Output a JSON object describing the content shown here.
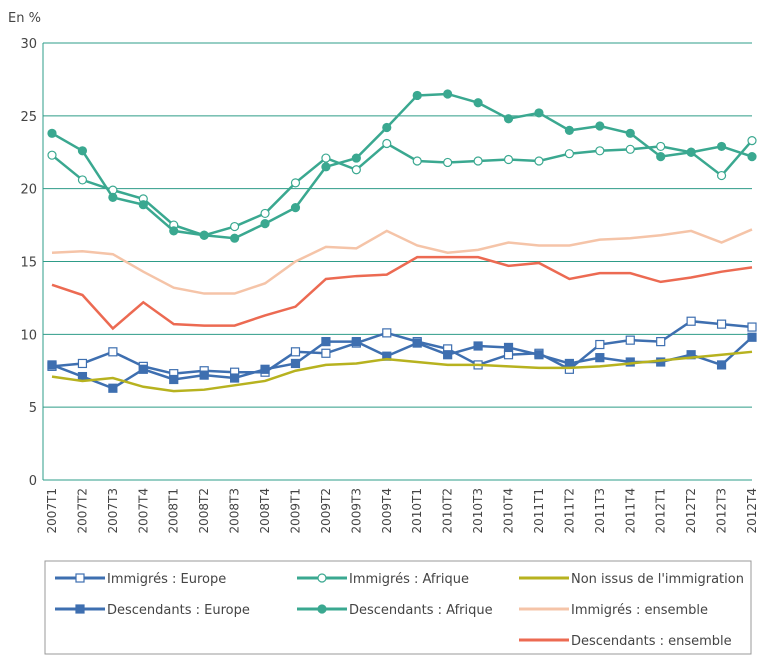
{
  "chart_data": {
    "type": "line",
    "y_label": "En %",
    "categories": [
      "2007T1",
      "2007T2",
      "2007T3",
      "2007T4",
      "2008T1",
      "2008T2",
      "2008T3",
      "2008T4",
      "2009T1",
      "2009T2",
      "2009T3",
      "2009T4",
      "2010T1",
      "2010T2",
      "2010T3",
      "2010T4",
      "2011T1",
      "2011T2",
      "2011T3",
      "2011T4",
      "2012T1",
      "2012T2",
      "2012T3",
      "2012T4"
    ],
    "ylim": [
      0,
      30
    ],
    "yticks": [
      0,
      5,
      10,
      15,
      20,
      25,
      30
    ],
    "grid": true,
    "series": [
      {
        "name": "Immigrés : Europe",
        "color": "#3e6fb0",
        "marker": "open-square",
        "values": [
          7.8,
          8.0,
          8.8,
          7.8,
          7.3,
          7.5,
          7.4,
          7.4,
          8.8,
          8.7,
          9.4,
          10.1,
          9.5,
          9.0,
          7.9,
          8.6,
          8.7,
          7.6,
          9.3,
          9.6,
          9.5,
          10.9,
          10.7,
          10.5
        ]
      },
      {
        "name": "Descendants : Europe",
        "color": "#3e6fb0",
        "marker": "square",
        "values": [
          7.9,
          7.1,
          6.3,
          7.6,
          6.9,
          7.2,
          7.0,
          7.6,
          8.0,
          9.5,
          9.5,
          8.5,
          9.4,
          8.6,
          9.2,
          9.1,
          8.6,
          8.0,
          8.4,
          8.1,
          8.1,
          8.6,
          7.9,
          9.8
        ]
      },
      {
        "name": "Immigrés : Afrique",
        "color": "#3aa890",
        "marker": "open-circle",
        "values": [
          22.3,
          20.6,
          19.9,
          19.3,
          17.5,
          16.8,
          17.4,
          18.3,
          20.4,
          22.1,
          21.3,
          23.1,
          21.9,
          21.8,
          21.9,
          22.0,
          21.9,
          22.4,
          22.6,
          22.7,
          22.9,
          22.5,
          20.9,
          23.3
        ]
      },
      {
        "name": "Descendants : Afrique",
        "color": "#3aa890",
        "marker": "circle",
        "values": [
          23.8,
          22.6,
          19.4,
          18.9,
          17.1,
          16.8,
          16.6,
          17.6,
          18.7,
          21.5,
          22.1,
          24.2,
          26.4,
          26.5,
          25.9,
          24.8,
          25.2,
          24.0,
          24.3,
          23.8,
          22.2,
          22.5,
          22.9,
          22.2
        ]
      },
      {
        "name": "Non issus de l'immigration",
        "color": "#b7b21f",
        "marker": "none",
        "values": [
          7.1,
          6.8,
          7.0,
          6.4,
          6.1,
          6.2,
          6.5,
          6.8,
          7.5,
          7.9,
          8.0,
          8.3,
          8.1,
          7.9,
          7.9,
          7.8,
          7.7,
          7.7,
          7.8,
          8.0,
          8.2,
          8.4,
          8.6,
          8.8
        ]
      },
      {
        "name": "Immigrés : ensemble",
        "color": "#f5c4a8",
        "marker": "none",
        "values": [
          15.6,
          15.7,
          15.5,
          14.3,
          13.2,
          12.8,
          12.8,
          13.5,
          15.0,
          16.0,
          15.9,
          17.1,
          16.1,
          15.6,
          15.8,
          16.3,
          16.1,
          16.1,
          16.5,
          16.6,
          16.8,
          17.1,
          16.3,
          17.2
        ]
      },
      {
        "name": "Descendants : ensemble",
        "color": "#ec6a52",
        "marker": "none",
        "values": [
          13.4,
          12.7,
          10.4,
          12.2,
          10.7,
          10.6,
          10.6,
          11.3,
          11.9,
          13.8,
          14.0,
          14.1,
          15.3,
          15.3,
          15.3,
          14.7,
          14.9,
          13.8,
          14.2,
          14.2,
          13.6,
          13.9,
          14.3,
          14.6
        ]
      }
    ]
  }
}
